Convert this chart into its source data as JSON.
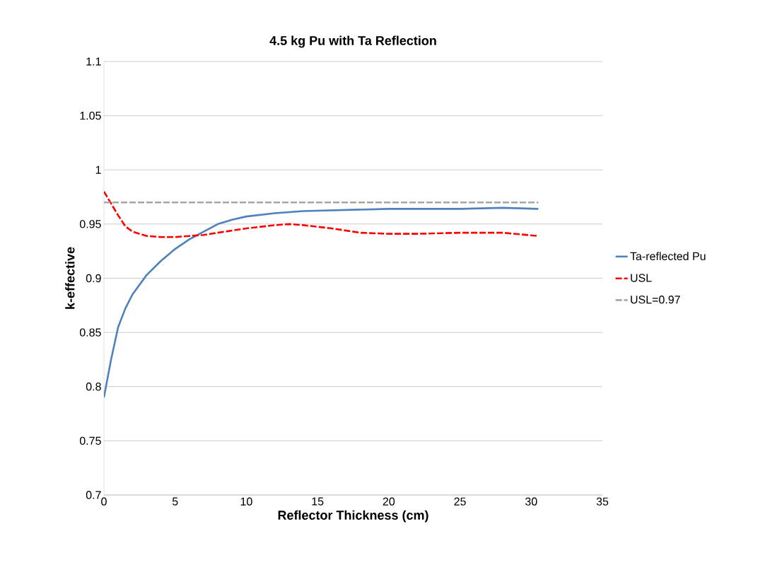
{
  "chart_data": {
    "type": "line",
    "title": "4.5 kg Pu with Ta Reflection",
    "xlabel": "Reflector Thickness (cm)",
    "ylabel": "k-effective",
    "xlim": [
      0,
      35
    ],
    "xticks": [
      0,
      5,
      10,
      15,
      20,
      25,
      30,
      35
    ],
    "ylim": [
      0.7,
      1.1
    ],
    "yticks": [
      0.7,
      0.75,
      0.8,
      0.85,
      0.9,
      0.95,
      1,
      1.05,
      1.1
    ],
    "grid": "y",
    "legend": "right",
    "marker": "none",
    "series": [
      {
        "name": "Ta-reflected Pu",
        "color": "#4f81bd",
        "line_style": "solid",
        "x": [
          0,
          0.5,
          1,
          1.5,
          2,
          3,
          4,
          5,
          6,
          7,
          8,
          9,
          10,
          12,
          14,
          17,
          20,
          25,
          28,
          30.5
        ],
        "values": [
          0.79,
          0.825,
          0.855,
          0.872,
          0.885,
          0.903,
          0.916,
          0.927,
          0.936,
          0.943,
          0.95,
          0.954,
          0.957,
          0.96,
          0.962,
          0.963,
          0.964,
          0.964,
          0.965,
          0.964
        ]
      },
      {
        "name": "USL",
        "color": "#ff0000",
        "line_style": "dashed",
        "x": [
          0,
          1,
          1.5,
          2,
          3,
          4,
          5,
          6,
          7,
          8,
          10,
          12,
          13,
          14,
          16,
          18,
          20,
          22,
          25,
          28,
          30.5
        ],
        "values": [
          0.98,
          0.958,
          0.948,
          0.943,
          0.939,
          0.938,
          0.938,
          0.939,
          0.94,
          0.942,
          0.946,
          0.949,
          0.95,
          0.949,
          0.946,
          0.942,
          0.941,
          0.941,
          0.942,
          0.942,
          0.939
        ]
      },
      {
        "name": "USL=0.97",
        "color": "#a6a6a6",
        "line_style": "dashed",
        "x": [
          0,
          30.5
        ],
        "values": [
          0.97,
          0.97
        ]
      }
    ]
  }
}
